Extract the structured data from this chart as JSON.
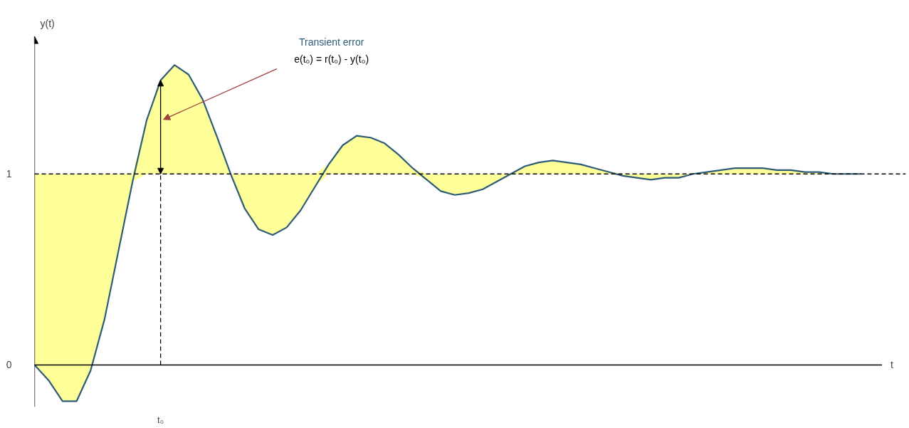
{
  "chart_data": {
    "type": "line",
    "xlabel": "t",
    "ylabel": "y(t)",
    "categories": [
      null,
      null,
      null,
      null,
      null,
      null,
      null,
      null,
      null,
      "t₀",
      null,
      null,
      null,
      null,
      null,
      null,
      null,
      null,
      null,
      null,
      null,
      null,
      null,
      null,
      null,
      null,
      null,
      null,
      null,
      null,
      null,
      null,
      null,
      null,
      null,
      null,
      null,
      null,
      null,
      null,
      null,
      null,
      null,
      null,
      null,
      null,
      null,
      null,
      null,
      null,
      null,
      null,
      null,
      null,
      null,
      null,
      null,
      null,
      null,
      null
    ],
    "series": [
      {
        "color": "#2e5c78",
        "values": [
          0,
          -0.08,
          -0.19,
          -0.19,
          -0.03,
          0.24,
          0.6,
          0.96,
          1.28,
          1.49,
          1.57,
          1.52,
          1.39,
          1.2,
          1.0,
          0.82,
          0.71,
          0.68,
          0.72,
          0.81,
          0.93,
          1.05,
          1.15,
          1.2,
          1.19,
          1.16,
          1.1,
          1.03,
          0.97,
          0.91,
          0.89,
          0.9,
          0.92,
          0.96,
          1.0,
          1.04,
          1.06,
          1.07,
          1.06,
          1.05,
          1.03,
          1.01,
          0.99,
          0.98,
          0.97,
          0.98,
          0.98,
          1.0,
          1.01,
          1.02,
          1.03,
          1.03,
          1.03,
          1.02,
          1.02,
          1.01,
          1.01,
          1.0,
          1.0,
          1.0
        ],
        "lower": [
          0,
          -0.08,
          -0.19,
          -0.19,
          -0.03,
          0.24,
          0.6,
          0.96,
          1,
          1,
          1,
          1,
          1,
          1,
          1.0,
          0.82,
          0.71,
          0.68,
          0.72,
          0.81,
          0.93,
          1,
          1,
          1,
          1,
          1,
          1,
          1,
          0.97,
          0.91,
          0.89,
          0.9,
          0.92,
          0.96,
          1,
          1,
          1,
          1,
          1,
          1,
          1,
          1,
          0.99,
          0.98,
          0.97,
          0.98,
          0.98,
          1,
          1,
          1,
          1,
          1,
          1,
          1,
          1,
          1,
          1,
          1,
          1,
          1
        ],
        "upper": [
          1,
          1,
          1,
          1,
          1,
          1,
          1,
          1,
          1.28,
          1.49,
          1.57,
          1.52,
          1.39,
          1.2,
          1,
          1,
          1,
          1,
          1,
          1,
          1,
          1.05,
          1.15,
          1.2,
          1.19,
          1.16,
          1.1,
          1.03,
          1,
          1,
          1,
          1,
          1,
          1,
          1,
          1.04,
          1.06,
          1.07,
          1.06,
          1.05,
          1.03,
          1.01,
          1,
          1,
          1,
          1,
          1,
          1,
          1.01,
          1.02,
          1.03,
          1.03,
          1.03,
          1.02,
          1.02,
          1.01,
          1.01,
          1,
          1,
          1
        ]
      }
    ],
    "ylim": [
      -0.22,
      1.72
    ],
    "yticks": [
      0,
      1
    ],
    "ref_lines": [
      {
        "axis": "y",
        "value": 1,
        "line_style": "dashed",
        "color": "#000000"
      },
      {
        "axis": "x",
        "value": "t₀",
        "line_style": "dashed",
        "color": "#000000"
      }
    ],
    "annotations": [
      "Transient error",
      "e(t₀) = r(t₀) - y(t₀)"
    ]
  }
}
